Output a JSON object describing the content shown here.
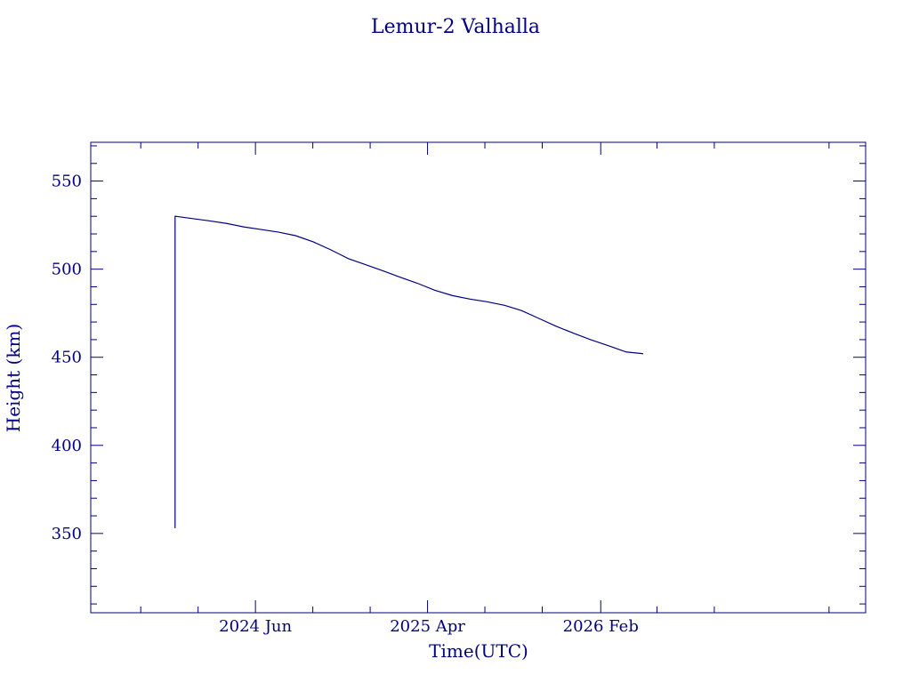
{
  "chart_data": {
    "type": "line",
    "title": "Lemur-2 Valhalla",
    "xlabel": "Time(UTC)",
    "ylabel": "Height (km)",
    "x_range": [
      "2023-08-15",
      "2027-05-15"
    ],
    "ylim": [
      305,
      572
    ],
    "y_ticks": [
      350,
      400,
      450,
      500,
      550
    ],
    "x_ticks": [
      {
        "date": "2024-06-01",
        "label": "2024 Jun"
      },
      {
        "date": "2025-04-01",
        "label": "2025 Apr"
      },
      {
        "date": "2026-02-01",
        "label": "2026 Feb"
      }
    ],
    "grid": false,
    "series": [
      {
        "x": [
          "2024-01-11",
          "2024-01-11",
          "2024-01-11",
          "2024-01-11",
          "2024-01-12",
          "2024-01-12",
          "2024-02-08",
          "2024-03-10",
          "2024-04-10",
          "2024-05-11",
          "2024-06-11",
          "2024-07-12",
          "2024-08-11",
          "2024-09-11",
          "2024-10-12",
          "2024-11-12",
          "2024-12-13",
          "2025-01-13",
          "2025-02-11",
          "2025-03-14",
          "2025-04-14",
          "2025-05-15",
          "2025-06-15",
          "2025-07-15",
          "2025-08-15",
          "2025-09-14",
          "2025-10-15",
          "2025-11-15",
          "2025-12-16",
          "2026-01-14",
          "2026-02-15",
          "2026-03-18",
          "2026-04-17"
        ],
        "y": [
          353,
          475,
          475,
          530,
          530,
          530,
          528.8,
          527.5,
          526,
          524,
          522.5,
          521,
          519,
          515.5,
          511,
          506,
          502.5,
          499,
          495.5,
          492,
          488,
          485,
          483,
          481.5,
          479.5,
          476.5,
          472,
          467.5,
          463.5,
          460,
          456.5,
          453,
          452
        ]
      }
    ]
  }
}
